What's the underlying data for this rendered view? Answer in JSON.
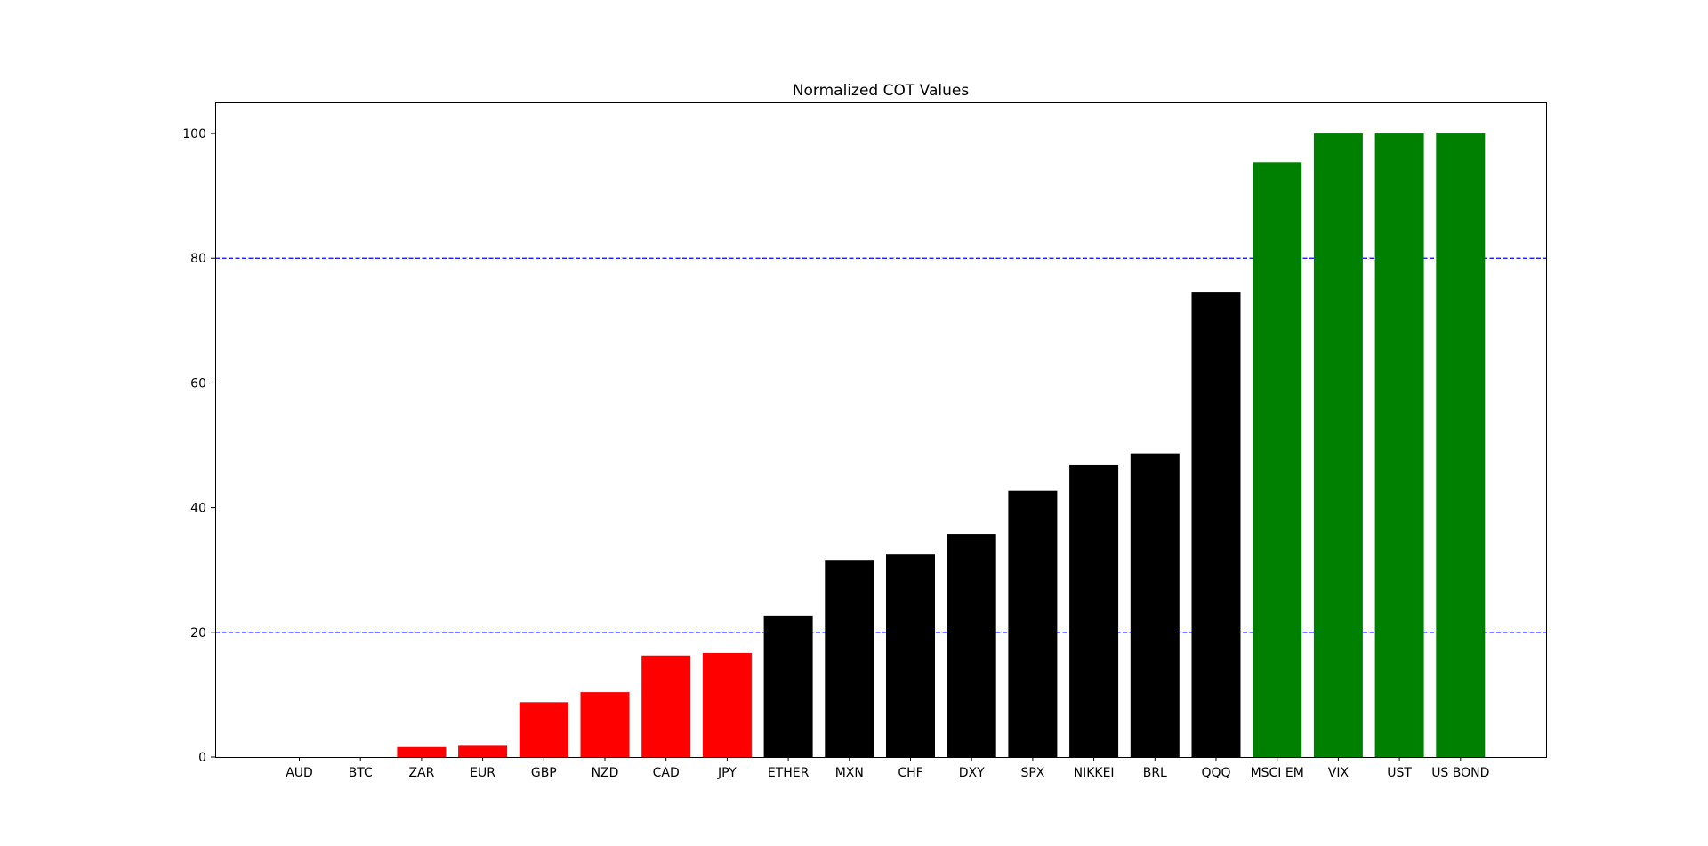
{
  "chart_data": {
    "type": "bar",
    "title": "Normalized COT Values",
    "xlabel": "",
    "ylabel": "",
    "categories": [
      "AUD",
      "BTC",
      "ZAR",
      "EUR",
      "GBP",
      "NZD",
      "CAD",
      "JPY",
      "ETHER",
      "MXN",
      "CHF",
      "DXY",
      "SPX",
      "NIKKEI",
      "BRL",
      "QQQ",
      "MSCI EM",
      "VIX",
      "UST",
      "US BOND"
    ],
    "values": [
      0,
      0,
      1.6,
      1.8,
      8.8,
      10.4,
      16.3,
      16.7,
      22.7,
      31.5,
      32.5,
      35.8,
      42.7,
      46.8,
      48.7,
      74.6,
      95.4,
      100,
      100,
      100
    ],
    "colors": [
      "#ff0000",
      "#ff0000",
      "#ff0000",
      "#ff0000",
      "#ff0000",
      "#ff0000",
      "#ff0000",
      "#ff0000",
      "#000000",
      "#000000",
      "#000000",
      "#000000",
      "#000000",
      "#000000",
      "#000000",
      "#000000",
      "#008000",
      "#008000",
      "#008000",
      "#008000"
    ],
    "ylim": [
      0,
      105
    ],
    "yticks": [
      0,
      20,
      40,
      60,
      80,
      100
    ],
    "reference_lines": [
      {
        "y": 20,
        "color": "#0000ff",
        "style": "dashed"
      },
      {
        "y": 80,
        "color": "#0000ff",
        "style": "dashed"
      }
    ],
    "grid": false
  }
}
